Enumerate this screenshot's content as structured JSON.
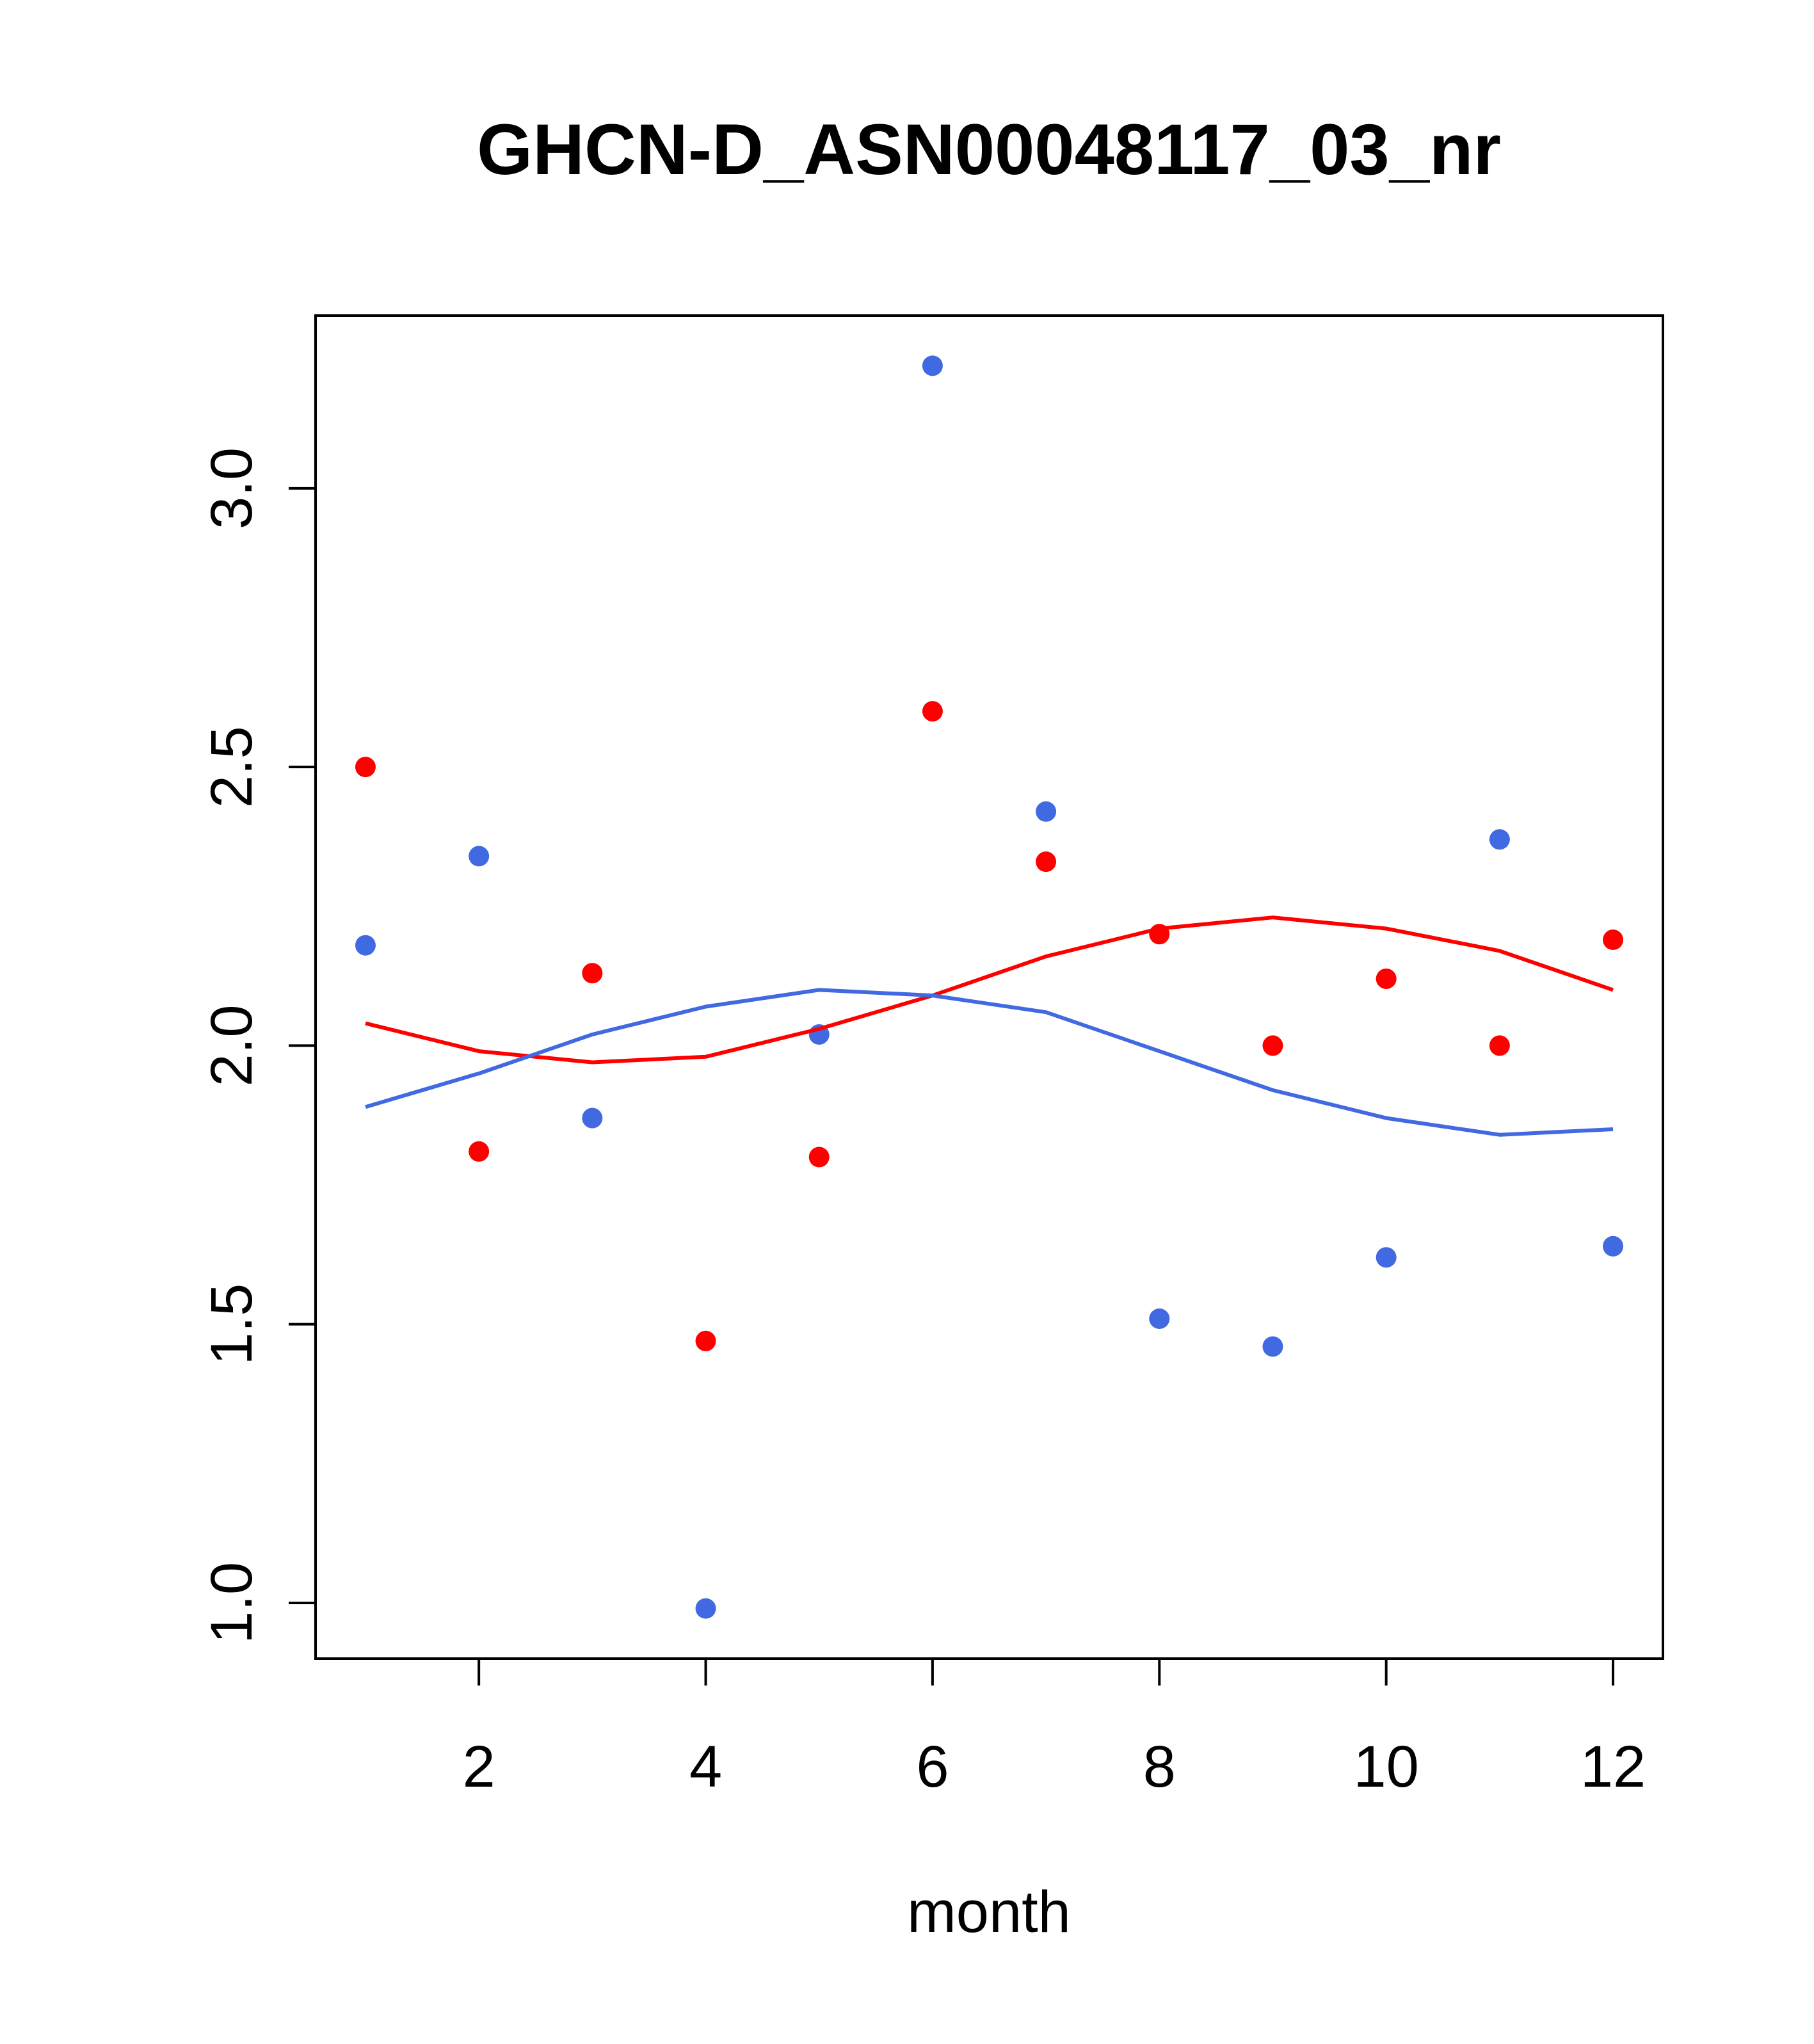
{
  "chart_data": {
    "type": "scatter",
    "title": "GHCN-D_ASN00048117_03_nr",
    "xlabel": "month",
    "ylabel": "",
    "xlim": [
      0.56,
      12.44
    ],
    "ylim": [
      0.9,
      3.31
    ],
    "x_ticks": [
      2,
      4,
      6,
      8,
      10,
      12
    ],
    "x_tick_labels": [
      "2",
      "4",
      "6",
      "8",
      "10",
      "12"
    ],
    "y_ticks": [
      1.0,
      1.5,
      2.0,
      2.5,
      3.0
    ],
    "y_tick_labels": [
      "1.0",
      "1.5",
      "2.0",
      "2.5",
      "3.0"
    ],
    "grid": false,
    "legend": "none",
    "series": [
      {
        "color": "#ff0000",
        "kind": "points",
        "x": [
          1,
          2,
          3,
          4,
          5,
          6,
          7,
          8,
          9,
          10,
          11,
          12
        ],
        "y": [
          2.5,
          1.81,
          2.13,
          1.47,
          1.8,
          2.6,
          2.33,
          2.2,
          2.0,
          2.12,
          2.0,
          2.19
        ]
      },
      {
        "color": "#4169e1",
        "kind": "points",
        "x": [
          1,
          2,
          3,
          4,
          5,
          6,
          7,
          8,
          9,
          10,
          11,
          12
        ],
        "y": [
          2.18,
          2.34,
          1.87,
          0.99,
          2.02,
          3.22,
          2.42,
          1.51,
          1.46,
          1.62,
          2.37,
          1.64
        ]
      },
      {
        "color": "#ff0000",
        "kind": "line",
        "x": [
          1,
          2,
          3,
          4,
          5,
          6,
          7,
          8,
          9,
          10,
          11,
          12
        ],
        "y": [
          2.04,
          1.99,
          1.97,
          1.98,
          2.03,
          2.09,
          2.16,
          2.21,
          2.23,
          2.21,
          2.17,
          2.1
        ]
      },
      {
        "color": "#4169e1",
        "kind": "line",
        "x": [
          1,
          2,
          3,
          4,
          5,
          6,
          7,
          8,
          9,
          10,
          11,
          12
        ],
        "y": [
          1.89,
          1.95,
          2.02,
          2.07,
          2.1,
          2.09,
          2.06,
          1.99,
          1.92,
          1.87,
          1.84,
          1.85
        ]
      }
    ]
  }
}
